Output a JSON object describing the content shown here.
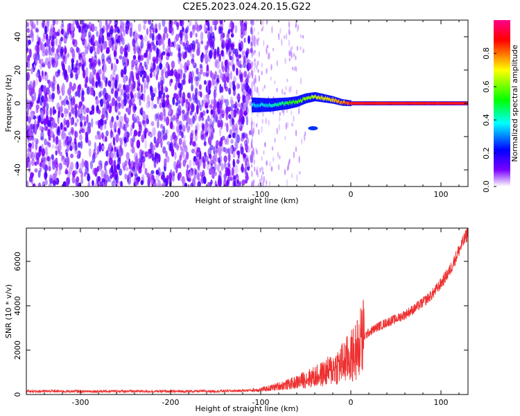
{
  "title": "C2E5.2023.024.20.15.G22",
  "chart_data": [
    {
      "type": "heatmap",
      "xlabel": "Height of straight line (km)",
      "ylabel": "Frequency (Hz)",
      "xlim": [
        -360,
        130
      ],
      "ylim": [
        -50,
        50
      ],
      "xticks": [
        -300,
        -200,
        -100,
        0,
        100
      ],
      "yticks": [
        -40,
        -20,
        0,
        20,
        40
      ],
      "colorbar": {
        "label": "Normalized spectral amplitude",
        "range": [
          0,
          1
        ],
        "ticks": [
          "0.0",
          "0.2",
          "0.4",
          "0.6",
          "0.8"
        ],
        "colors": [
          "#ffffff",
          "#7a00ff",
          "#0000ff",
          "#00ffff",
          "#00ff00",
          "#ffff00",
          "#ff0000",
          "#ff0088"
        ]
      },
      "noise_region": {
        "x_range": [
          -360,
          -110
        ],
        "y_range": [
          -50,
          50
        ],
        "amplitude": 0.15
      },
      "signal_ridge": {
        "x": [
          -110,
          -100,
          -90,
          -80,
          -70,
          -60,
          -50,
          -40,
          -30,
          -20,
          -10,
          0,
          10,
          20,
          40,
          60,
          80,
          100,
          130
        ],
        "frequency": [
          -1,
          -1,
          -1,
          -0.5,
          0,
          1,
          3,
          4,
          3,
          2,
          0.5,
          0,
          0,
          0,
          0,
          0,
          0,
          0,
          0
        ],
        "amplitude": [
          0.35,
          0.35,
          0.4,
          0.45,
          0.5,
          0.55,
          0.6,
          0.65,
          0.7,
          0.75,
          0.8,
          0.85,
          0.9,
          0.9,
          0.9,
          0.9,
          0.9,
          0.9,
          0.9
        ]
      },
      "secondary_blob": {
        "x": -42,
        "frequency": -15,
        "amplitude": 0.25
      }
    },
    {
      "type": "line",
      "xlabel": "Height of straight line (km)",
      "ylabel": "SNR (10 * v/v)",
      "xlim": [
        -360,
        130
      ],
      "ylim": [
        0,
        7500
      ],
      "xticks": [
        -300,
        -200,
        -100,
        0,
        100
      ],
      "yticks": [
        0,
        2000,
        4000,
        6000
      ],
      "color": "#ee3030",
      "series": [
        {
          "x": [
            -360,
            -300,
            -250,
            -200,
            -150,
            -120,
            -100,
            -90,
            -80,
            -70,
            -60,
            -50,
            -40,
            -30,
            -20,
            -10,
            -5,
            0,
            5,
            10,
            15,
            20,
            30,
            40,
            50,
            60,
            70,
            80,
            90,
            100,
            110,
            120,
            130
          ],
          "values": [
            150,
            140,
            150,
            140,
            150,
            170,
            220,
            280,
            380,
            450,
            550,
            700,
            800,
            950,
            1150,
            1400,
            1550,
            1700,
            1900,
            2300,
            2600,
            2800,
            3050,
            3250,
            3400,
            3600,
            3850,
            4150,
            4500,
            5000,
            5600,
            6500,
            7300
          ]
        }
      ]
    }
  ]
}
